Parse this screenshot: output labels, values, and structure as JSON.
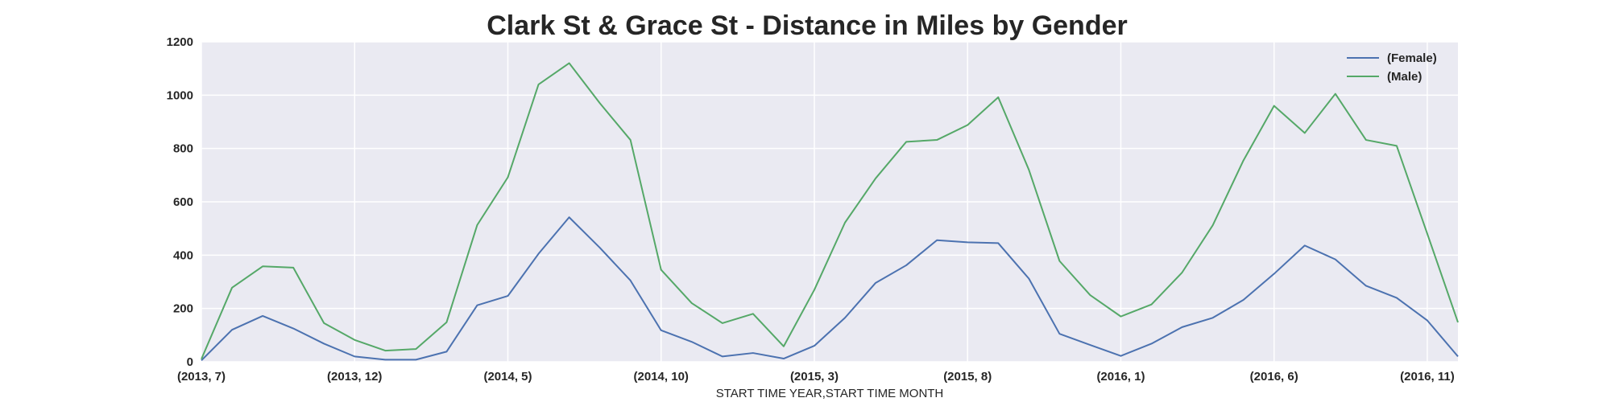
{
  "chart_data": {
    "type": "line",
    "title": "Clark St & Grace St - Distance in Miles by Gender",
    "xlabel": "START TIME YEAR,START TIME MONTH",
    "ylabel": "",
    "x": [
      "(2013, 7)",
      "(2013, 8)",
      "(2013, 9)",
      "(2013, 10)",
      "(2013, 11)",
      "(2013, 12)",
      "(2014, 1)",
      "(2014, 2)",
      "(2014, 3)",
      "(2014, 4)",
      "(2014, 5)",
      "(2014, 6)",
      "(2014, 7)",
      "(2014, 8)",
      "(2014, 9)",
      "(2014, 10)",
      "(2014, 11)",
      "(2014, 12)",
      "(2015, 1)",
      "(2015, 2)",
      "(2015, 3)",
      "(2015, 4)",
      "(2015, 5)",
      "(2015, 6)",
      "(2015, 7)",
      "(2015, 8)",
      "(2015, 9)",
      "(2015, 10)",
      "(2015, 11)",
      "(2015, 12)",
      "(2016, 1)",
      "(2016, 2)",
      "(2016, 3)",
      "(2016, 4)",
      "(2016, 5)",
      "(2016, 6)",
      "(2016, 7)",
      "(2016, 8)",
      "(2016, 9)",
      "(2016, 10)",
      "(2016, 11)",
      "(2016, 12)"
    ],
    "x_tick_labels": [
      "(2013, 7)",
      "(2013, 12)",
      "(2014, 5)",
      "(2014, 10)",
      "(2015, 3)",
      "(2015, 8)",
      "(2016, 1)",
      "(2016, 6)",
      "(2016, 11)"
    ],
    "y_ticks": [
      0,
      200,
      400,
      600,
      800,
      1000,
      1200
    ],
    "ylim": [
      0,
      1200
    ],
    "grid": true,
    "legend_position": "top-right",
    "series": [
      {
        "name": "(Female)",
        "color": "#4c72b0",
        "values": [
          5,
          120,
          172,
          125,
          68,
          20,
          8,
          8,
          38,
          212,
          247,
          405,
          542,
          428,
          305,
          118,
          75,
          20,
          33,
          12,
          60,
          165,
          296,
          362,
          456,
          448,
          445,
          312,
          105,
          63,
          22,
          68,
          130,
          165,
          232,
          330,
          436,
          384,
          285,
          240,
          155,
          20
        ]
      },
      {
        "name": "(Male)",
        "color": "#55a868",
        "values": [
          10,
          278,
          358,
          353,
          145,
          82,
          42,
          48,
          148,
          513,
          692,
          1040,
          1120,
          970,
          832,
          345,
          220,
          145,
          180,
          58,
          270,
          522,
          688,
          825,
          832,
          888,
          992,
          720,
          378,
          250,
          170,
          215,
          335,
          512,
          755,
          960,
          858,
          1005,
          832,
          810,
          480,
          148
        ]
      }
    ]
  }
}
